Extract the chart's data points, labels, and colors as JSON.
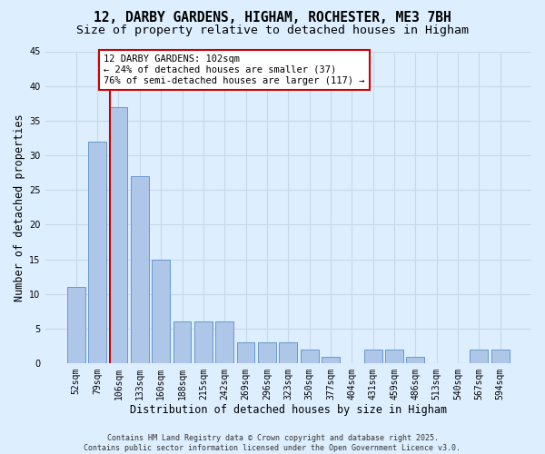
{
  "title": "12, DARBY GARDENS, HIGHAM, ROCHESTER, ME3 7BH",
  "subtitle": "Size of property relative to detached houses in Higham",
  "xlabel": "Distribution of detached houses by size in Higham",
  "ylabel": "Number of detached properties",
  "categories": [
    "52sqm",
    "79sqm",
    "106sqm",
    "133sqm",
    "160sqm",
    "188sqm",
    "215sqm",
    "242sqm",
    "269sqm",
    "296sqm",
    "323sqm",
    "350sqm",
    "377sqm",
    "404sqm",
    "431sqm",
    "459sqm",
    "486sqm",
    "513sqm",
    "540sqm",
    "567sqm",
    "594sqm"
  ],
  "values": [
    11,
    32,
    37,
    27,
    15,
    6,
    6,
    6,
    3,
    3,
    3,
    2,
    1,
    0,
    2,
    2,
    1,
    0,
    0,
    2,
    2
  ],
  "bar_color": "#aec6e8",
  "bar_edge_color": "#6699cc",
  "grid_color": "#c8d8e8",
  "background_color": "#ddeeff",
  "plot_bg_color": "#ddeeff",
  "annotation_box_color": "#ffffff",
  "annotation_box_edge": "#cc0000",
  "annotation_text_line1": "12 DARBY GARDENS: 102sqm",
  "annotation_text_line2": "← 24% of detached houses are smaller (37)",
  "annotation_text_line3": "76% of semi-detached houses are larger (117) →",
  "redline_index": 2,
  "redline_color": "#cc0000",
  "ylim": [
    0,
    45
  ],
  "yticks": [
    0,
    5,
    10,
    15,
    20,
    25,
    30,
    35,
    40,
    45
  ],
  "footer": "Contains HM Land Registry data © Crown copyright and database right 2025.\nContains public sector information licensed under the Open Government Licence v3.0.",
  "title_fontsize": 10.5,
  "subtitle_fontsize": 9.5,
  "label_fontsize": 8.5,
  "tick_fontsize": 7,
  "annotation_fontsize": 7.5,
  "footer_fontsize": 6
}
